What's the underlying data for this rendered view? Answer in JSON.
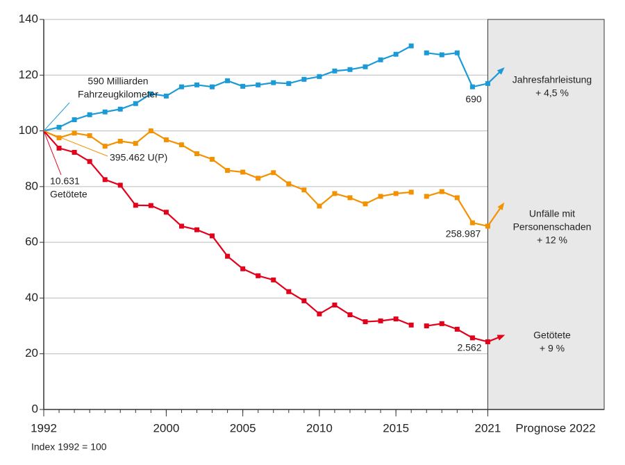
{
  "chart_data": {
    "type": "line",
    "x": [
      1992,
      1993,
      1994,
      1995,
      1996,
      1997,
      1998,
      1999,
      2000,
      2001,
      2002,
      2003,
      2004,
      2005,
      2006,
      2007,
      2008,
      2009,
      2010,
      2011,
      2012,
      2013,
      2014,
      2015,
      2016,
      2016.5,
      2017,
      2018,
      2019,
      2020,
      2021
    ],
    "xlim": [
      1992,
      2028.6
    ],
    "xticks": [
      1992,
      2000,
      2005,
      2010,
      2015,
      2021
    ],
    "ylim": [
      0,
      140
    ],
    "yticks": [
      0,
      20,
      40,
      60,
      80,
      100,
      120,
      140
    ],
    "grid": true,
    "forecast_label": "Prognose 2022",
    "forecast_x": 2022,
    "note": "Index 1992 = 100",
    "series": [
      {
        "name": "Jahresfahrleistung",
        "color": "#1b9ad6",
        "values": [
          100,
          101.3,
          104,
          105.8,
          106.8,
          107.8,
          109.8,
          113.3,
          112.5,
          115.8,
          116.5,
          115.8,
          118,
          116,
          116.5,
          117.3,
          117,
          118.5,
          119.5,
          121.5,
          122,
          123,
          125.5,
          127.5,
          130.5,
          null,
          128,
          127.3,
          128,
          115.8,
          117
        ],
        "forecast": 122.3,
        "change": "+ 4,5 %",
        "start_label": [
          "590 Milliarden",
          "Fahrzeugkilometer"
        ],
        "end_label": "690"
      },
      {
        "name": "Unfälle mit Personenschaden",
        "name_lines": [
          "Unfälle mit",
          "Personenschaden"
        ],
        "color": "#f39200",
        "values": [
          100,
          97.5,
          99.2,
          98.3,
          94.5,
          96.3,
          95.5,
          100,
          96.8,
          95,
          91.8,
          89.8,
          85.8,
          85.2,
          83,
          85,
          81,
          78.8,
          73,
          77.5,
          76,
          73.8,
          76.5,
          77.5,
          78,
          null,
          76.5,
          78.2,
          76,
          67,
          65.8
        ],
        "forecast": 73.7,
        "change": "+ 12 %",
        "start_label": [
          "395.462 U(P)"
        ],
        "end_label": "258.987"
      },
      {
        "name": "Getötete",
        "color": "#e3001b",
        "values": [
          100,
          93.8,
          92.3,
          89,
          82.5,
          80.5,
          73.3,
          73.2,
          70.8,
          65.8,
          64.5,
          62.3,
          55,
          50.5,
          48,
          46.5,
          42.3,
          39,
          34.3,
          37.5,
          34,
          31.5,
          31.8,
          32.5,
          30.3,
          null,
          30,
          30.8,
          28.8,
          25.7,
          24.3
        ],
        "forecast": 26.5,
        "change": "+ 9 %",
        "start_label": [
          "10.631",
          "Getötete"
        ],
        "end_label": "2.562"
      }
    ]
  }
}
